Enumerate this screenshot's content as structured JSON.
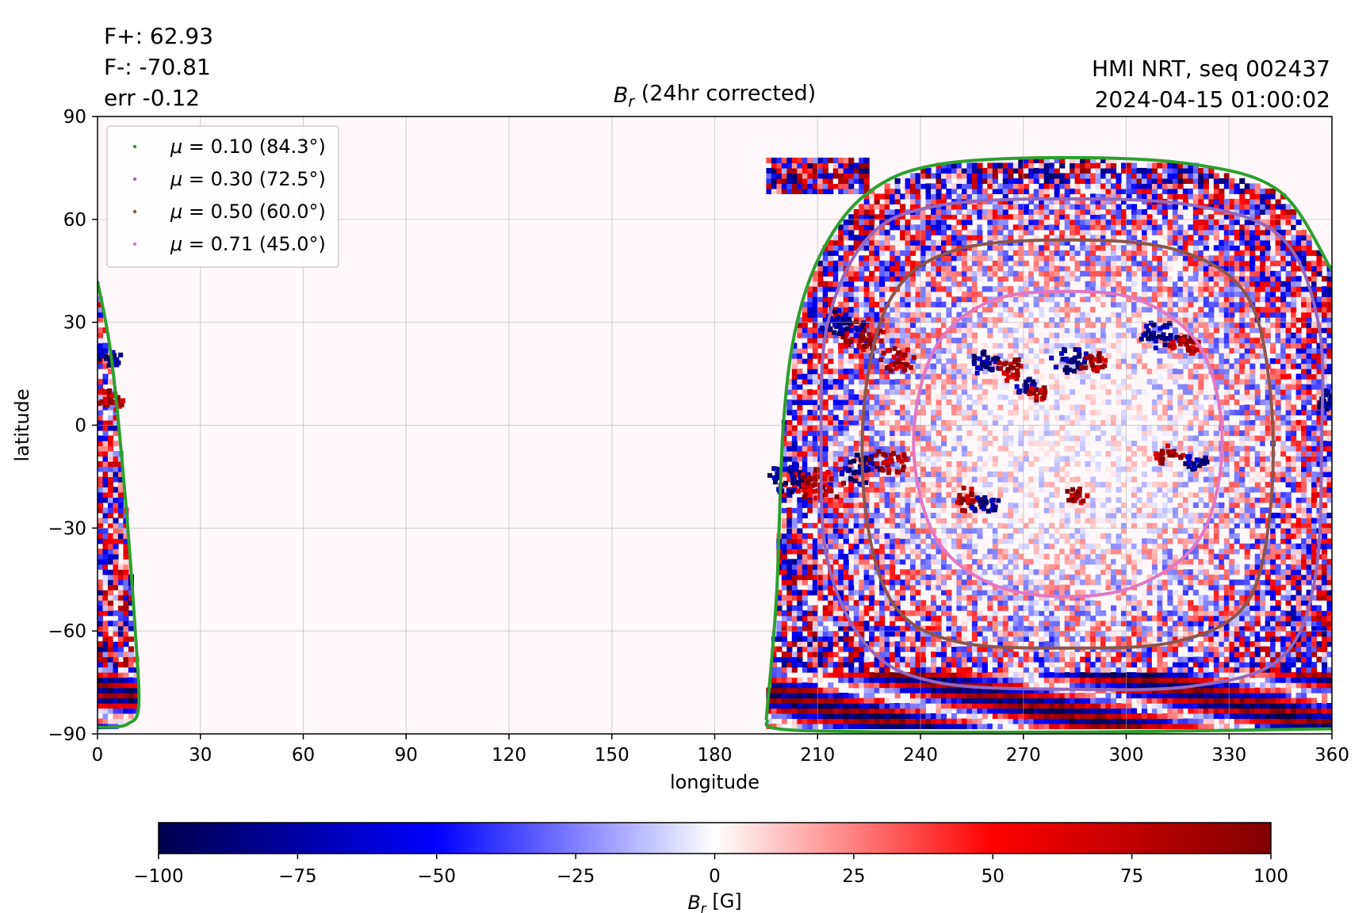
{
  "header": {
    "flux_positive": "F+: 62.93",
    "flux_negative": "F-: -70.81",
    "error": "err -0.12",
    "instrument": "HMI NRT, seq 002437",
    "timestamp": "2024-04-15 01:00:02"
  },
  "chart_data": {
    "type": "heatmap",
    "title": {
      "symbol": "B",
      "subscript": "r",
      "text": " (24hr corrected)"
    },
    "xlabel": "longitude",
    "ylabel": "latitude",
    "xlim": [
      0,
      360
    ],
    "ylim": [
      -90,
      90
    ],
    "xticks": [
      0,
      30,
      60,
      90,
      120,
      150,
      180,
      210,
      240,
      270,
      300,
      330,
      360
    ],
    "yticks": [
      -90,
      -60,
      -30,
      0,
      30,
      60,
      90
    ],
    "xtick_labels": [
      "0",
      "30",
      "60",
      "90",
      "120",
      "150",
      "180",
      "210",
      "240",
      "270",
      "300",
      "330",
      "360"
    ],
    "ytick_labels": [
      "−90",
      "−60",
      "−30",
      "0",
      "30",
      "60",
      "90"
    ],
    "grid": true,
    "legend_position": "top-left",
    "visible_disk": {
      "center_lon": 283,
      "center_lat": -5,
      "regions": [
        {
          "lon_min": 195,
          "lon_max": 360,
          "lat_min": -89,
          "lat_max": 78
        },
        {
          "lon_min": 0,
          "lon_max": 12,
          "lat_min": -88,
          "lat_max": 42
        }
      ]
    },
    "series": [
      {
        "name": {
          "symbol": "μ",
          "text": " = 0.10 (84.3°)"
        },
        "color": "#2ca02c",
        "contour": [
          [
            195,
            -86
          ],
          [
            198,
            -50
          ],
          [
            200,
            0
          ],
          [
            204,
            30
          ],
          [
            212,
            52
          ],
          [
            225,
            68
          ],
          [
            245,
            76
          ],
          [
            283,
            78
          ],
          [
            320,
            76
          ],
          [
            345,
            68
          ],
          [
            360,
            45
          ]
        ],
        "wrap_contour": [
          [
            0,
            42
          ],
          [
            4,
            20
          ],
          [
            8,
            -20
          ],
          [
            11,
            -60
          ],
          [
            12,
            -82
          ],
          [
            9,
            -87
          ],
          [
            4,
            -88
          ],
          [
            0,
            -88
          ]
        ]
      },
      {
        "name": {
          "symbol": "μ",
          "text": " = 0.30 (72.5°)"
        },
        "color": "#9467bd",
        "contour": [
          [
            283,
            66
          ],
          [
            320,
            64
          ],
          [
            345,
            55
          ],
          [
            356,
            30
          ],
          [
            357,
            -5
          ],
          [
            355,
            -45
          ],
          [
            345,
            -68
          ],
          [
            320,
            -76
          ],
          [
            283,
            -77
          ],
          [
            245,
            -75
          ],
          [
            225,
            -65
          ],
          [
            213,
            -40
          ],
          [
            211,
            -5
          ],
          [
            213,
            30
          ],
          [
            225,
            55
          ],
          [
            245,
            64
          ]
        ]
      },
      {
        "name": {
          "symbol": "μ",
          "text": " = 0.50 (60.0°)"
        },
        "color": "#8c564b",
        "contour": [
          [
            283,
            54
          ],
          [
            315,
            51
          ],
          [
            335,
            38
          ],
          [
            342,
            10
          ],
          [
            342,
            -25
          ],
          [
            335,
            -52
          ],
          [
            315,
            -63
          ],
          [
            283,
            -65
          ],
          [
            250,
            -63
          ],
          [
            232,
            -52
          ],
          [
            224,
            -25
          ],
          [
            224,
            10
          ],
          [
            232,
            38
          ],
          [
            250,
            51
          ]
        ]
      },
      {
        "name": {
          "symbol": "μ",
          "text": " = 0.71 (45.0°)"
        },
        "color": "#e377c2",
        "contour": [
          [
            283,
            39
          ],
          [
            305,
            36
          ],
          [
            322,
            22
          ],
          [
            328,
            -5
          ],
          [
            322,
            -32
          ],
          [
            305,
            -46
          ],
          [
            283,
            -50
          ],
          [
            260,
            -46
          ],
          [
            244,
            -32
          ],
          [
            238,
            -5
          ],
          [
            244,
            22
          ],
          [
            260,
            36
          ]
        ]
      }
    ],
    "active_regions": [
      {
        "lon": 222,
        "lat": 27,
        "polarity": "positive",
        "strength": 1.0
      },
      {
        "lon": 216,
        "lat": 30,
        "polarity": "negative",
        "strength": 1.0
      },
      {
        "lon": 233,
        "lat": 20,
        "polarity": "positive",
        "strength": 0.8
      },
      {
        "lon": 258,
        "lat": 19,
        "polarity": "negative",
        "strength": 0.7
      },
      {
        "lon": 265,
        "lat": 17,
        "polarity": "positive",
        "strength": 0.7
      },
      {
        "lon": 283,
        "lat": 20,
        "polarity": "negative",
        "strength": 0.8
      },
      {
        "lon": 290,
        "lat": 19,
        "polarity": "positive",
        "strength": 0.6
      },
      {
        "lon": 270,
        "lat": 12,
        "polarity": "negative",
        "strength": 0.5
      },
      {
        "lon": 274,
        "lat": 10,
        "polarity": "positive",
        "strength": 0.5
      },
      {
        "lon": 309,
        "lat": 27,
        "polarity": "negative",
        "strength": 0.8
      },
      {
        "lon": 316,
        "lat": 24,
        "polarity": "positive",
        "strength": 0.7
      },
      {
        "lon": 202,
        "lat": -15,
        "polarity": "negative",
        "strength": 1.0
      },
      {
        "lon": 210,
        "lat": -17,
        "polarity": "positive",
        "strength": 1.0
      },
      {
        "lon": 222,
        "lat": -12,
        "polarity": "negative",
        "strength": 0.9
      },
      {
        "lon": 230,
        "lat": -10,
        "polarity": "positive",
        "strength": 0.8
      },
      {
        "lon": 253,
        "lat": -21,
        "polarity": "positive",
        "strength": 0.7
      },
      {
        "lon": 258,
        "lat": -22,
        "polarity": "negative",
        "strength": 0.6
      },
      {
        "lon": 312,
        "lat": -8,
        "polarity": "positive",
        "strength": 0.6
      },
      {
        "lon": 320,
        "lat": -10,
        "polarity": "negative",
        "strength": 0.5
      },
      {
        "lon": 285,
        "lat": -20,
        "polarity": "positive",
        "strength": 0.5
      },
      {
        "lon": 358,
        "lat": 8,
        "polarity": "negative",
        "strength": 0.6
      },
      {
        "lon": 3,
        "lat": 8,
        "polarity": "positive",
        "strength": 0.7
      },
      {
        "lon": 3,
        "lat": 20,
        "polarity": "negative",
        "strength": 0.5
      }
    ],
    "colorbar": {
      "label": {
        "symbol": "B",
        "subscript": "r",
        "text": " [G]"
      },
      "range": [
        -100,
        100
      ],
      "ticks": [
        -100,
        -75,
        -50,
        -25,
        0,
        25,
        50,
        75,
        100
      ],
      "tick_labels": [
        "−100",
        "−75",
        "−50",
        "−25",
        "0",
        "25",
        "50",
        "75",
        "100"
      ],
      "colormap": "seismic",
      "colors": [
        "#00004c",
        "#0000ff",
        "#ffffff",
        "#ff0000",
        "#800000"
      ]
    }
  }
}
